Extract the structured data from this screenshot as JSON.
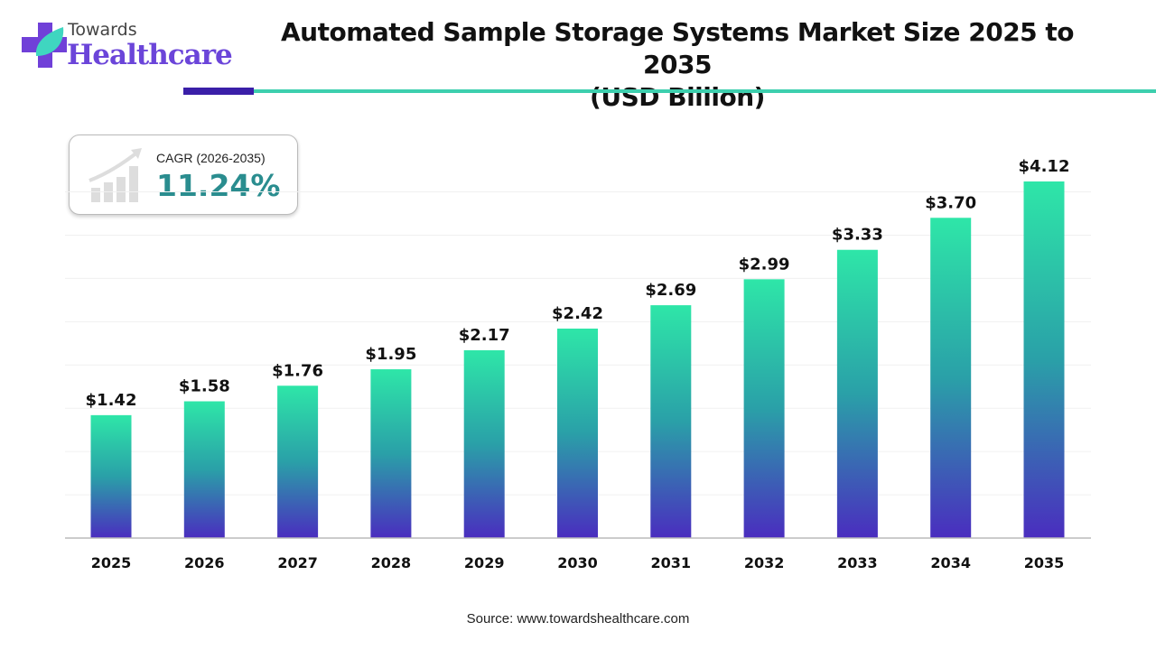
{
  "logo": {
    "towards": "Towards",
    "healthcare": "Healthcare"
  },
  "colors": {
    "bar_top": "#2ee6a8",
    "bar_bottom": "#4a2dbf",
    "cagr_value": "#2a8d8f",
    "accent_dark": "#3a1fa8",
    "accent_teal": "#3dcfae"
  },
  "cagr": {
    "label": "CAGR (2026-2035)",
    "value": "11.24%",
    "icon": "growth-chart-icon"
  },
  "source": "Source: www.towardshealthcare.com",
  "chart_data": {
    "type": "bar",
    "title": "Automated Sample Storage Systems Market Size 2025 to 2035",
    "subtitle": "(USD Billion)",
    "categories": [
      "2025",
      "2026",
      "2027",
      "2028",
      "2029",
      "2030",
      "2031",
      "2032",
      "2033",
      "2034",
      "2035"
    ],
    "values": [
      1.42,
      1.58,
      1.76,
      1.95,
      2.17,
      2.42,
      2.69,
      2.99,
      3.33,
      3.7,
      4.12
    ],
    "data_labels": [
      "$1.42",
      "$1.58",
      "$1.76",
      "$1.95",
      "$2.17",
      "$2.42",
      "$2.69",
      "$2.99",
      "$3.33",
      "$3.70",
      "$4.12"
    ],
    "xlabel": "",
    "ylabel": "",
    "ylim": [
      0,
      4.12
    ],
    "grid": true,
    "legend": "none"
  }
}
